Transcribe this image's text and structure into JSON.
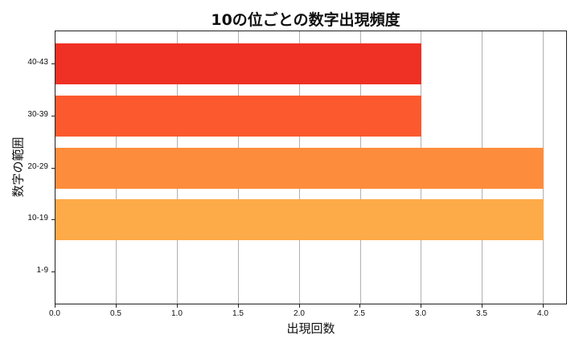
{
  "chart_data": {
    "type": "bar",
    "orientation": "horizontal",
    "title": "10の位ごとの数字出現頻度",
    "xlabel": "出現回数",
    "ylabel": "数字の範囲",
    "categories": [
      "1-9",
      "10-19",
      "20-29",
      "30-39",
      "40-43"
    ],
    "values": [
      0,
      4,
      4,
      3,
      3
    ],
    "colors": [
      "#ffffff",
      "#fdaa48",
      "#fd8d3c",
      "#fc5a2e",
      "#ef3125"
    ],
    "xlim": [
      0,
      4.2
    ],
    "xticks": [
      "0.0",
      "0.5",
      "1.0",
      "1.5",
      "2.0",
      "2.5",
      "3.0",
      "3.5",
      "4.0"
    ],
    "grid": {
      "x": true,
      "y": false
    },
    "legend": null
  },
  "labels": {
    "title": "10の位ごとの数字出現頻度",
    "xlabel": "出現回数",
    "ylabel": "数字の範囲",
    "xticks": [
      "0.0",
      "0.5",
      "1.0",
      "1.5",
      "2.0",
      "2.5",
      "3.0",
      "3.5",
      "4.0"
    ],
    "yticks": [
      "40-43",
      "30-39",
      "20-29",
      "10-19",
      "1-9"
    ]
  }
}
